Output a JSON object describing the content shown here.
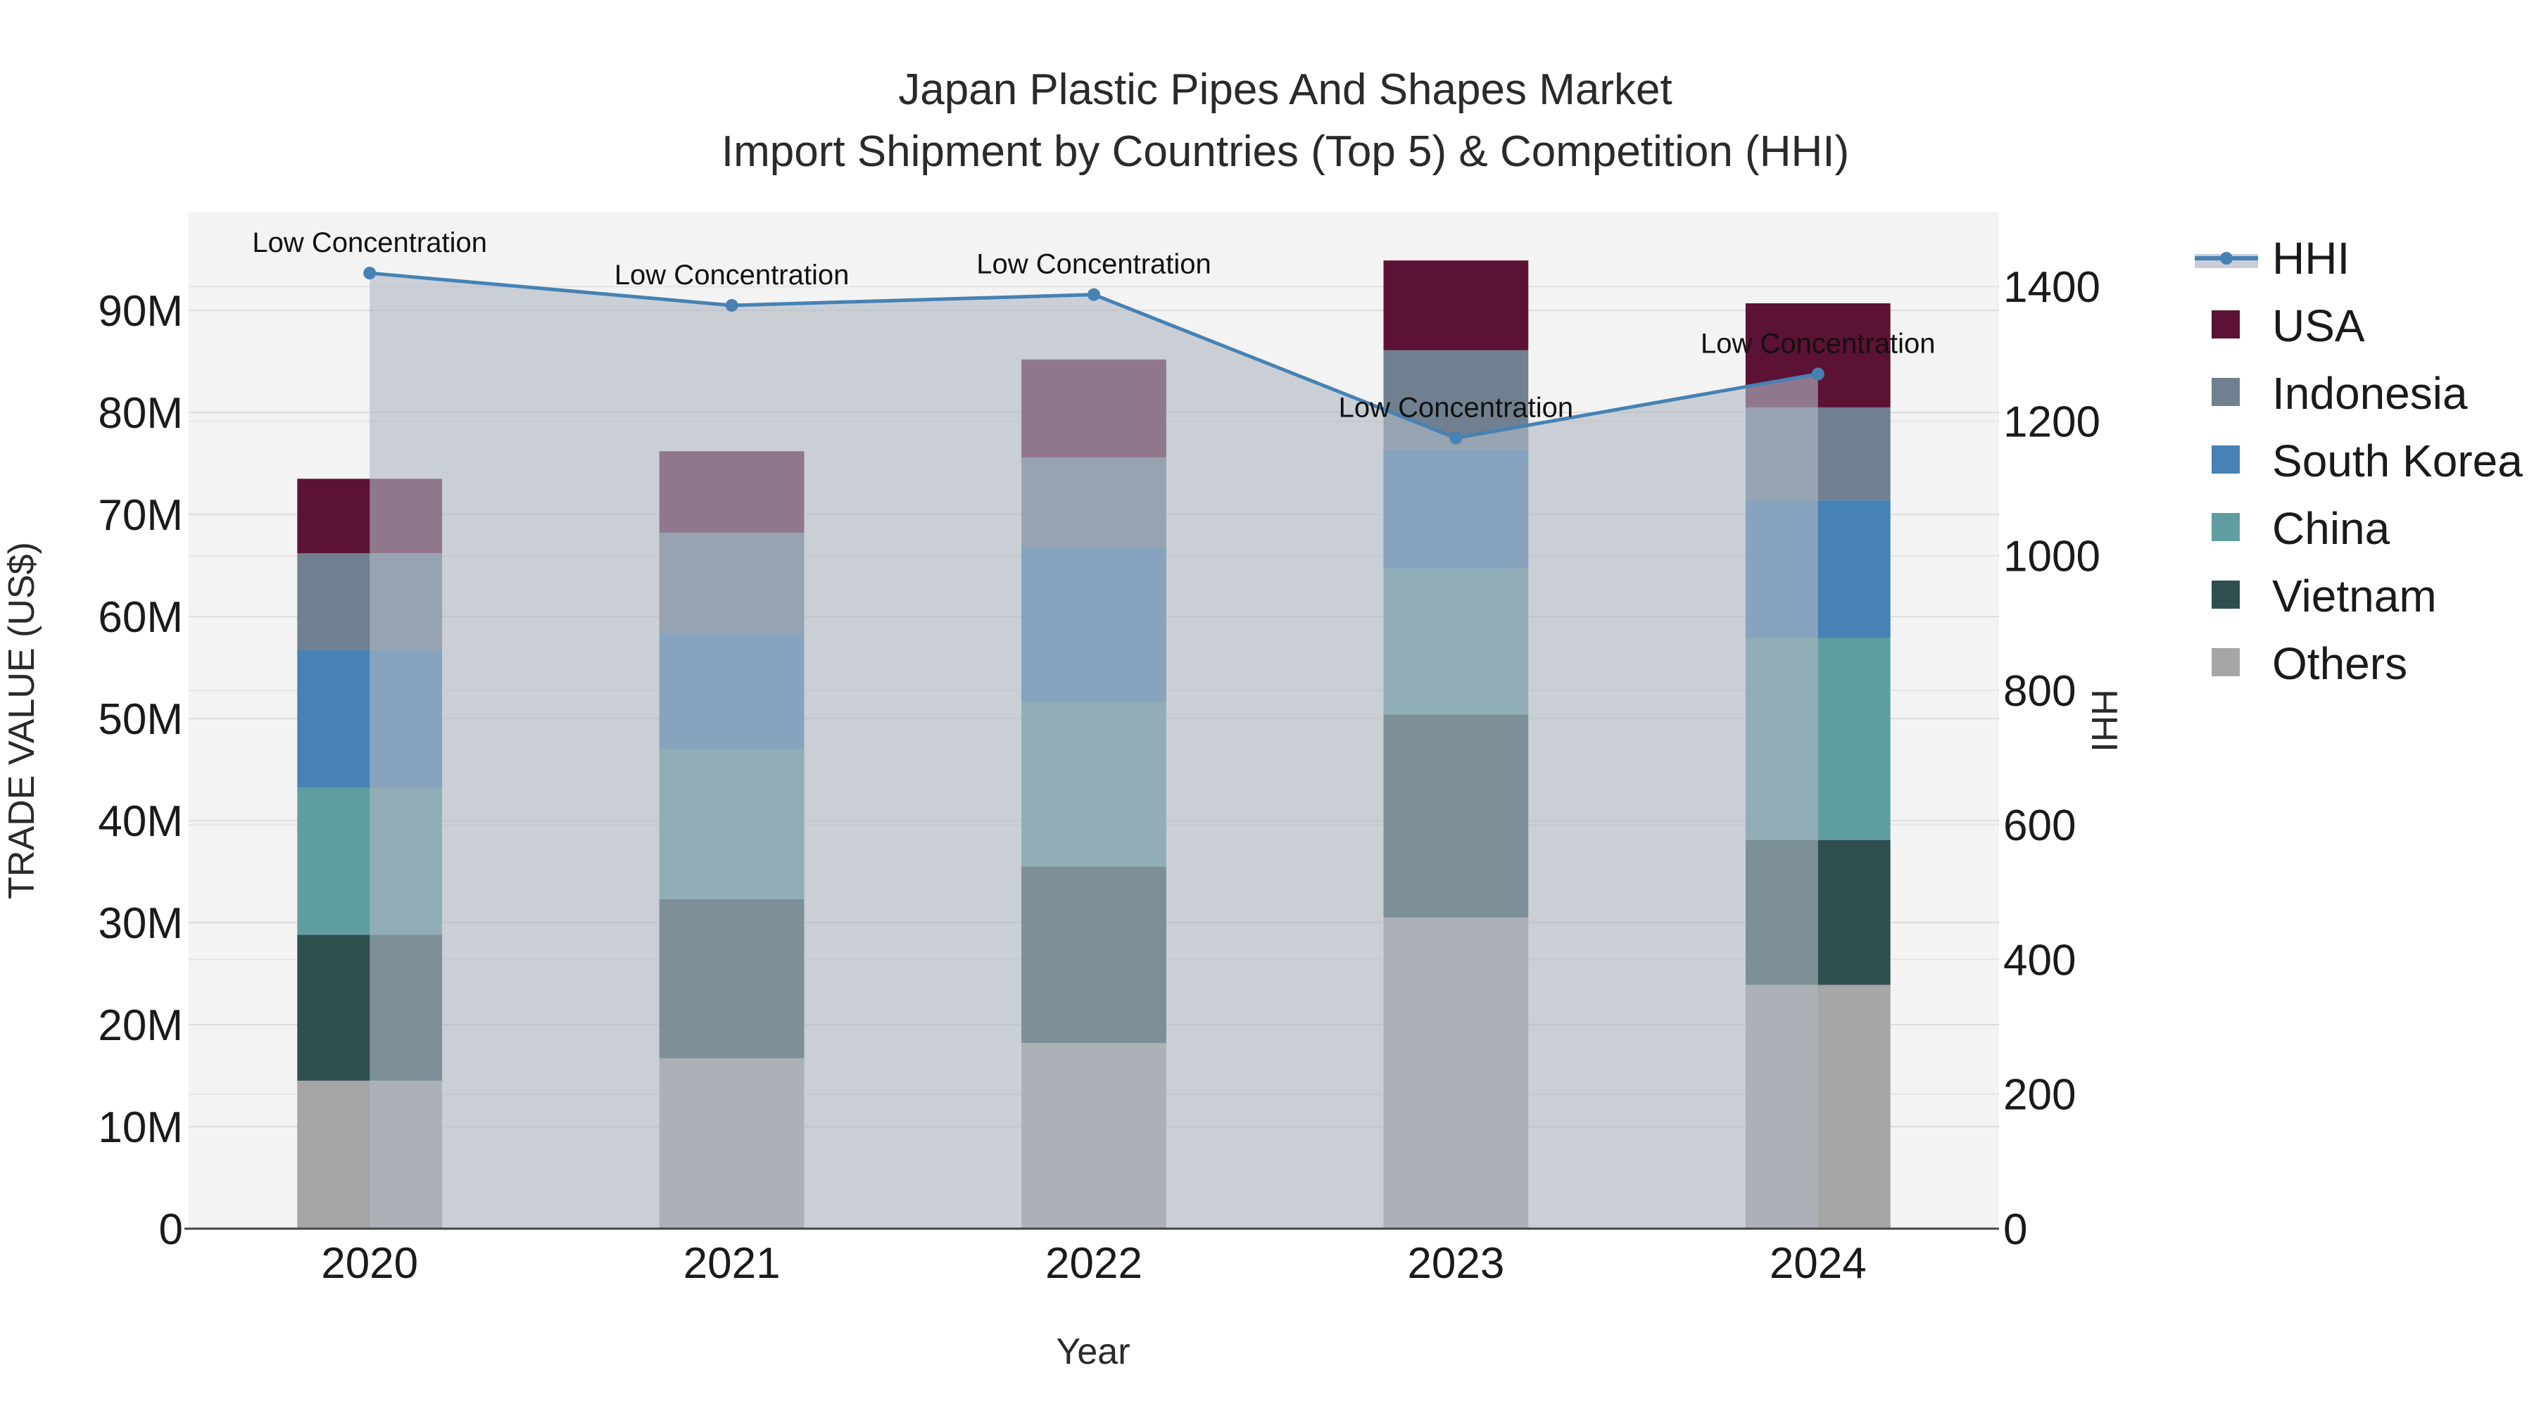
{
  "chart_data": {
    "type": "bar",
    "stacked": true,
    "title_line1": "Japan Plastic Pipes And Shapes Market",
    "title_line2": "Import Shipment by Countries (Top 5) & Competition (HHI)",
    "xlabel": "Year",
    "ylabel": "TRADE VALUE (US$)",
    "y2label": "HHI",
    "categories": [
      "2020",
      "2021",
      "2022",
      "2023",
      "2024"
    ],
    "ylim": [
      0,
      99600000
    ],
    "y2lim": [
      0,
      1510
    ],
    "y_ticks": [
      0,
      10000000,
      20000000,
      30000000,
      40000000,
      50000000,
      60000000,
      70000000,
      80000000,
      90000000
    ],
    "y_tick_labels": [
      "0",
      "10M",
      "20M",
      "30M",
      "40M",
      "50M",
      "60M",
      "70M",
      "80M",
      "90M"
    ],
    "y2_ticks": [
      0,
      200,
      400,
      600,
      800,
      1000,
      1200,
      1400
    ],
    "y2_tick_labels": [
      "0",
      "200",
      "400",
      "600",
      "800",
      "1000",
      "1200",
      "1400"
    ],
    "series": [
      {
        "name": "Others",
        "color": "#a6a6a6",
        "values": [
          14500000,
          16700000,
          18200000,
          30500000,
          23900000
        ]
      },
      {
        "name": "Vietnam",
        "color": "#2f4f4f",
        "values": [
          14300000,
          15600000,
          17300000,
          19900000,
          14200000
        ]
      },
      {
        "name": "China",
        "color": "#5f9ea0",
        "values": [
          14400000,
          14700000,
          16100000,
          14300000,
          19800000
        ]
      },
      {
        "name": "South Korea",
        "color": "#4682b4",
        "values": [
          13500000,
          11400000,
          15200000,
          11700000,
          13500000
        ]
      },
      {
        "name": "Indonesia",
        "color": "#708090",
        "values": [
          9500000,
          9800000,
          8800000,
          9700000,
          9100000
        ]
      },
      {
        "name": "USA",
        "color": "#5c1234",
        "values": [
          7300000,
          8000000,
          9600000,
          8800000,
          10200000
        ]
      }
    ],
    "hhi": {
      "name": "HHI",
      "color": "#4682b4",
      "values": [
        1420,
        1372,
        1388,
        1175,
        1270
      ],
      "labels": [
        "Low Concentration",
        "Low Concentration",
        "Low Concentration",
        "Low Concentration",
        "Low Concentration"
      ]
    },
    "legend_order": [
      "HHI",
      "USA",
      "Indonesia",
      "South Korea",
      "China",
      "Vietnam",
      "Others"
    ],
    "legend_position": "right"
  }
}
